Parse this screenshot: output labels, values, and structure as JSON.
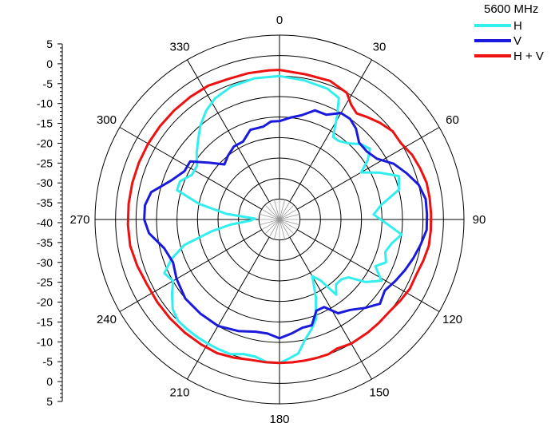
{
  "chart_data": {
    "type": "polar-line",
    "title": "5600 MHz",
    "radial_range": [
      -40,
      5
    ],
    "radial_ticks": [
      "5",
      "0",
      "-5",
      "-10",
      "-15",
      "-20",
      "-25",
      "-30",
      "-35",
      "-40",
      "-35",
      "-30",
      "-25",
      "-20",
      "-15",
      "-10",
      "-5",
      "0",
      "5"
    ],
    "ring_values": [
      -35,
      -30,
      -25,
      -20,
      -15,
      -10,
      -5,
      0
    ],
    "angle_labels": [
      "0",
      "30",
      "60",
      "90",
      "120",
      "150",
      "180",
      "210",
      "240",
      "270",
      "300",
      "330"
    ],
    "angle_label_values": [
      0,
      30,
      60,
      90,
      120,
      150,
      180,
      210,
      240,
      270,
      300,
      330
    ],
    "grid": true,
    "legend_position": "top-right",
    "series": [
      {
        "name": "H",
        "color": "#33EEEE",
        "points": [
          [
            0,
            -5
          ],
          [
            10,
            -5.5
          ],
          [
            20,
            -6
          ],
          [
            26,
            -7
          ],
          [
            29,
            -11
          ],
          [
            33,
            -16
          ],
          [
            37,
            -16
          ],
          [
            42,
            -15
          ],
          [
            47,
            -13
          ],
          [
            52,
            -12
          ],
          [
            56,
            -14
          ],
          [
            60,
            -17
          ],
          [
            65,
            -13
          ],
          [
            70,
            -9
          ],
          [
            76,
            -10
          ],
          [
            82,
            -15
          ],
          [
            87,
            -17
          ],
          [
            92,
            -14
          ],
          [
            97,
            -10
          ],
          [
            102,
            -12
          ],
          [
            107,
            -13
          ],
          [
            112,
            -12
          ],
          [
            116,
            -14
          ],
          [
            121,
            -11
          ],
          [
            126,
            -14
          ],
          [
            130,
            -18
          ],
          [
            134,
            -19
          ],
          [
            139,
            -19
          ],
          [
            143,
            -17
          ],
          [
            146,
            -22
          ],
          [
            150,
            -24
          ],
          [
            155,
            -19
          ],
          [
            160,
            -14
          ],
          [
            164,
            -12
          ],
          [
            168,
            -10
          ],
          [
            172,
            -7
          ],
          [
            176,
            -6
          ],
          [
            180,
            -5
          ],
          [
            185,
            -5
          ],
          [
            190,
            -6
          ],
          [
            195,
            -6
          ],
          [
            200,
            -5
          ],
          [
            205,
            -5
          ],
          [
            210,
            -5
          ],
          [
            215,
            -5
          ],
          [
            220,
            -5
          ],
          [
            225,
            -5
          ],
          [
            230,
            -6
          ],
          [
            235,
            -8
          ],
          [
            240,
            -10
          ],
          [
            245,
            -9
          ],
          [
            250,
            -12
          ],
          [
            255,
            -16
          ],
          [
            260,
            -23
          ],
          [
            264,
            -28
          ],
          [
            268,
            -33
          ],
          [
            272,
            -34
          ],
          [
            276,
            -27
          ],
          [
            281,
            -20
          ],
          [
            286,
            -14
          ],
          [
            291,
            -14
          ],
          [
            297,
            -16
          ],
          [
            303,
            -16
          ],
          [
            309,
            -14
          ],
          [
            315,
            -12
          ],
          [
            320,
            -10
          ],
          [
            326,
            -8
          ],
          [
            332,
            -6.5
          ],
          [
            340,
            -5.5
          ],
          [
            350,
            -5
          ],
          [
            360,
            -5
          ]
        ]
      },
      {
        "name": "V",
        "color": "#1A1ADD",
        "points": [
          [
            0,
            -16
          ],
          [
            6,
            -15
          ],
          [
            12,
            -14
          ],
          [
            18,
            -12
          ],
          [
            24,
            -12
          ],
          [
            30,
            -10
          ],
          [
            35,
            -10
          ],
          [
            40,
            -11
          ],
          [
            46,
            -13
          ],
          [
            52,
            -13
          ],
          [
            58,
            -12
          ],
          [
            64,
            -9
          ],
          [
            70,
            -7
          ],
          [
            76,
            -5
          ],
          [
            82,
            -4
          ],
          [
            88,
            -4
          ],
          [
            94,
            -4
          ],
          [
            100,
            -5
          ],
          [
            106,
            -6
          ],
          [
            112,
            -7
          ],
          [
            118,
            -8
          ],
          [
            124,
            -9
          ],
          [
            130,
            -8
          ],
          [
            136,
            -10
          ],
          [
            142,
            -12
          ],
          [
            148,
            -13
          ],
          [
            153,
            -16
          ],
          [
            158,
            -16
          ],
          [
            163,
            -13
          ],
          [
            168,
            -13
          ],
          [
            174,
            -12
          ],
          [
            180,
            -11
          ],
          [
            186,
            -12
          ],
          [
            192,
            -12
          ],
          [
            200,
            -11
          ],
          [
            210,
            -10
          ],
          [
            220,
            -10
          ],
          [
            230,
            -10
          ],
          [
            240,
            -11
          ],
          [
            248,
            -12
          ],
          [
            256,
            -11
          ],
          [
            264,
            -8
          ],
          [
            270,
            -7
          ],
          [
            276,
            -7
          ],
          [
            282,
            -8
          ],
          [
            290,
            -12
          ],
          [
            297,
            -14
          ],
          [
            303,
            -14
          ],
          [
            309,
            -18
          ],
          [
            315,
            -21
          ],
          [
            321,
            -20
          ],
          [
            328,
            -19
          ],
          [
            335,
            -19
          ],
          [
            342,
            -17
          ],
          [
            350,
            -17
          ],
          [
            355,
            -16
          ],
          [
            360,
            -16
          ]
        ]
      },
      {
        "name": "H + V",
        "color": "#EE1111",
        "points": [
          [
            0,
            -3.5
          ],
          [
            10,
            -4
          ],
          [
            20,
            -4
          ],
          [
            28,
            -5
          ],
          [
            32,
            -7
          ],
          [
            36,
            -8
          ],
          [
            41,
            -7
          ],
          [
            46,
            -6
          ],
          [
            52,
            -5
          ],
          [
            58,
            -5
          ],
          [
            64,
            -4
          ],
          [
            70,
            -3.5
          ],
          [
            76,
            -3
          ],
          [
            82,
            -3
          ],
          [
            88,
            -3
          ],
          [
            94,
            -3
          ],
          [
            100,
            -3
          ],
          [
            106,
            -3.5
          ],
          [
            112,
            -4
          ],
          [
            118,
            -4
          ],
          [
            124,
            -4.5
          ],
          [
            130,
            -5
          ],
          [
            136,
            -5
          ],
          [
            142,
            -5
          ],
          [
            150,
            -5
          ],
          [
            156,
            -5.5
          ],
          [
            160,
            -5
          ],
          [
            165,
            -5
          ],
          [
            170,
            -5
          ],
          [
            175,
            -5
          ],
          [
            180,
            -5
          ],
          [
            186,
            -5
          ],
          [
            192,
            -5
          ],
          [
            198,
            -4.5
          ],
          [
            205,
            -4
          ],
          [
            212,
            -4
          ],
          [
            220,
            -4
          ],
          [
            228,
            -4
          ],
          [
            236,
            -4
          ],
          [
            244,
            -4
          ],
          [
            252,
            -3.5
          ],
          [
            260,
            -3
          ],
          [
            268,
            -3
          ],
          [
            276,
            -3
          ],
          [
            284,
            -3
          ],
          [
            292,
            -3
          ],
          [
            300,
            -3
          ],
          [
            308,
            -3
          ],
          [
            316,
            -3
          ],
          [
            324,
            -3
          ],
          [
            332,
            -3
          ],
          [
            340,
            -3.5
          ],
          [
            348,
            -3.5
          ],
          [
            356,
            -3.5
          ],
          [
            360,
            -3.5
          ]
        ]
      }
    ]
  }
}
